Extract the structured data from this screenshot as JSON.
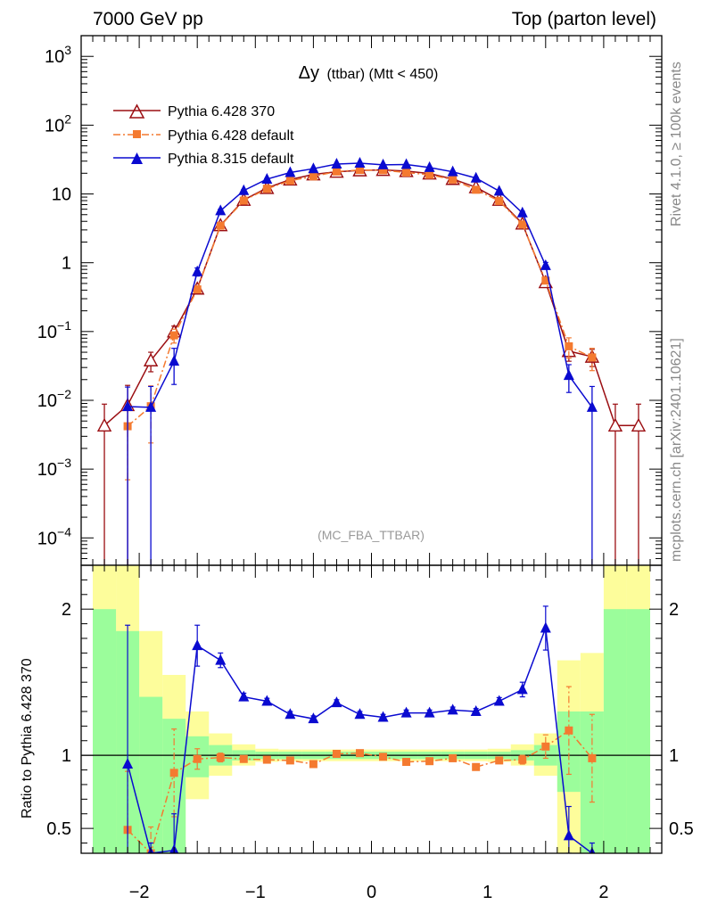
{
  "header": {
    "left": "7000 GeV pp",
    "right": "Top (parton level)"
  },
  "side_labels": {
    "rivet": "Rivet 4.1.0, ≥ 100k events",
    "mcplots": "mcplots.cern.ch [arXiv:2401.10621]"
  },
  "colors": {
    "p6_370": "#9b0e12",
    "p6_def": "#f47a30",
    "p8": "#0a0ad0",
    "band_green": "#9bfd9b",
    "band_yellow": "#fdfd9b"
  },
  "chart_data": [
    {
      "type": "line",
      "panel": "main",
      "title": "Δy (ttbar) (Mtt < 450)",
      "title_main": "Δy",
      "title_sub": "(ttbar) (Mtt < 450)",
      "watermark": "(MC_FBA_TTBAR)",
      "yscale": "log",
      "ylim": [
        4e-05,
        2000
      ],
      "xlim": [
        -2.5,
        2.5
      ],
      "x_ticks": [
        -2,
        -1,
        0,
        1,
        2
      ],
      "x_tick_labels": [
        "−2",
        "−1",
        "0",
        "1",
        "2"
      ],
      "y_ticks": [
        {
          "v": 0.0001,
          "base": "10",
          "exp": "−4"
        },
        {
          "v": 0.001,
          "base": "10",
          "exp": "−3"
        },
        {
          "v": 0.01,
          "base": "10",
          "exp": "−2"
        },
        {
          "v": 0.1,
          "base": "10",
          "exp": "−1"
        },
        {
          "v": 1,
          "base": "1",
          "exp": ""
        },
        {
          "v": 10,
          "base": "10",
          "exp": ""
        },
        {
          "v": 100,
          "base": "10",
          "exp": "2"
        },
        {
          "v": 1000,
          "base": "10",
          "exp": "3"
        }
      ],
      "legend_position": "top-left",
      "series": [
        {
          "name": "Pythia 6.428 370",
          "marker": "open-triangle",
          "line": "solid",
          "x": [
            -2.3,
            -2.1,
            -1.9,
            -1.7,
            -1.5,
            -1.3,
            -1.1,
            -0.9,
            -0.7,
            -0.5,
            -0.3,
            -0.1,
            0.1,
            0.3,
            0.5,
            0.7,
            0.9,
            1.1,
            1.3,
            1.5,
            1.7,
            1.9,
            2.1,
            2.3
          ],
          "y": [
            0.0043,
            0.0085,
            0.038,
            0.1,
            0.42,
            3.5,
            8.2,
            12.2,
            16.2,
            19.2,
            21.0,
            22.0,
            22.3,
            21.5,
            19.8,
            16.5,
            12.5,
            8.2,
            3.7,
            0.52,
            0.052,
            0.043,
            0.0043,
            0.0043
          ],
          "err_lo": [
            0.0043,
            0.0085,
            0.012,
            0.02,
            0.04,
            0.1,
            0.2,
            0.2,
            0.2,
            0.2,
            0.2,
            0.2,
            0.2,
            0.2,
            0.2,
            0.2,
            0.2,
            0.2,
            0.1,
            0.05,
            0.015,
            0.012,
            0.0043,
            0.0043
          ],
          "err_hi": [
            0.0045,
            0.008,
            0.012,
            0.02,
            0.04,
            0.1,
            0.2,
            0.2,
            0.2,
            0.2,
            0.2,
            0.2,
            0.2,
            0.2,
            0.2,
            0.2,
            0.2,
            0.2,
            0.1,
            0.05,
            0.015,
            0.012,
            0.0045,
            0.0045
          ]
        },
        {
          "name": "Pythia 6.428 default",
          "marker": "square",
          "line": "dash-dot",
          "x": [
            -2.1,
            -1.9,
            -1.7,
            -1.5,
            -1.3,
            -1.1,
            -0.9,
            -0.7,
            -0.5,
            -0.3,
            -0.1,
            0.1,
            0.3,
            0.5,
            0.7,
            0.9,
            1.1,
            1.3,
            1.5,
            1.7,
            1.9
          ],
          "y": [
            0.0042,
            0.0082,
            0.088,
            0.41,
            3.45,
            8.0,
            11.9,
            15.6,
            18.0,
            21.2,
            22.3,
            22.1,
            20.5,
            19.0,
            16.2,
            11.5,
            7.9,
            3.6,
            0.55,
            0.061,
            0.042
          ],
          "err_lo": [
            0.0035,
            0.0058,
            0.02,
            0.04,
            0.1,
            0.2,
            0.2,
            0.2,
            0.2,
            0.2,
            0.2,
            0.2,
            0.2,
            0.2,
            0.2,
            0.2,
            0.2,
            0.1,
            0.05,
            0.02,
            0.015
          ],
          "err_hi": [
            0.004,
            0.008,
            0.02,
            0.04,
            0.1,
            0.2,
            0.2,
            0.2,
            0.2,
            0.2,
            0.2,
            0.2,
            0.2,
            0.2,
            0.2,
            0.2,
            0.2,
            0.1,
            0.05,
            0.02,
            0.015
          ]
        },
        {
          "name": "Pythia 8.315 default",
          "marker": "filled-triangle",
          "line": "solid",
          "x": [
            -2.1,
            -1.9,
            -1.7,
            -1.5,
            -1.3,
            -1.1,
            -0.9,
            -0.7,
            -0.5,
            -0.3,
            -0.1,
            0.1,
            0.3,
            0.5,
            0.7,
            0.9,
            1.1,
            1.3,
            1.5,
            1.7,
            1.9
          ],
          "y": [
            0.0081,
            0.0079,
            0.037,
            0.74,
            5.7,
            11.2,
            16.4,
            20.5,
            23.3,
            27.2,
            28.0,
            26.5,
            26.8,
            24.2,
            21.0,
            17.0,
            11.0,
            5.3,
            0.91,
            0.023,
            0.0079
          ],
          "err_lo": [
            0.0081,
            0.0079,
            0.02,
            0.1,
            0.3,
            0.4,
            0.4,
            0.4,
            0.4,
            0.4,
            0.4,
            0.4,
            0.4,
            0.4,
            0.4,
            0.4,
            0.4,
            0.3,
            0.1,
            0.01,
            0.0079
          ],
          "err_hi": [
            0.0075,
            0.008,
            0.02,
            0.1,
            0.3,
            0.4,
            0.4,
            0.4,
            0.4,
            0.4,
            0.4,
            0.4,
            0.4,
            0.4,
            0.4,
            0.4,
            0.4,
            0.3,
            0.1,
            0.01,
            0.008
          ]
        }
      ]
    },
    {
      "type": "line",
      "panel": "ratio",
      "ylabel": "Ratio to Pythia 6.428 370",
      "ylim": [
        0.33,
        2.3
      ],
      "xlim": [
        -2.5,
        2.5
      ],
      "y_ticks": [
        0.5,
        1,
        2
      ],
      "y_tick_labels": [
        "0.5",
        "1",
        "2"
      ],
      "reference_line": 1,
      "band_edges": [
        -2.4,
        -2.2,
        -2.0,
        -1.8,
        -1.6,
        -1.4,
        -1.2,
        -1.0,
        -0.8,
        -0.6,
        -0.4,
        -0.2,
        0.0,
        0.2,
        0.4,
        0.6,
        0.8,
        1.0,
        1.2,
        1.4,
        1.6,
        1.8,
        2.0,
        2.2,
        2.4
      ],
      "band_green": [
        [
          0.2,
          2.0
        ],
        [
          0.2,
          1.85
        ],
        [
          0.2,
          1.4
        ],
        [
          0.2,
          1.25
        ],
        [
          0.85,
          1.13
        ],
        [
          0.93,
          1.07
        ],
        [
          0.965,
          1.035
        ],
        [
          0.975,
          1.025
        ],
        [
          0.975,
          1.025
        ],
        [
          0.975,
          1.025
        ],
        [
          0.975,
          1.025
        ],
        [
          0.975,
          1.025
        ],
        [
          0.975,
          1.025
        ],
        [
          0.975,
          1.025
        ],
        [
          0.975,
          1.025
        ],
        [
          0.975,
          1.025
        ],
        [
          0.975,
          1.025
        ],
        [
          0.975,
          1.025
        ],
        [
          0.965,
          1.035
        ],
        [
          0.93,
          1.07
        ],
        [
          0.75,
          1.3
        ],
        [
          0.2,
          1.3
        ],
        [
          0.2,
          2.0
        ],
        [
          0.2,
          2.0
        ]
      ],
      "band_yellow": [
        [
          0.2,
          2.3
        ],
        [
          0.2,
          2.3
        ],
        [
          0.2,
          1.85
        ],
        [
          0.2,
          1.55
        ],
        [
          0.7,
          1.3
        ],
        [
          0.86,
          1.15
        ],
        [
          0.93,
          1.075
        ],
        [
          0.955,
          1.045
        ],
        [
          0.96,
          1.04
        ],
        [
          0.96,
          1.04
        ],
        [
          0.96,
          1.04
        ],
        [
          0.96,
          1.04
        ],
        [
          0.96,
          1.04
        ],
        [
          0.96,
          1.04
        ],
        [
          0.96,
          1.04
        ],
        [
          0.96,
          1.04
        ],
        [
          0.96,
          1.04
        ],
        [
          0.955,
          1.045
        ],
        [
          0.93,
          1.075
        ],
        [
          0.86,
          1.15
        ],
        [
          0.3,
          1.65
        ],
        [
          0.2,
          1.7
        ],
        [
          0.2,
          2.3
        ],
        [
          0.2,
          2.3
        ]
      ],
      "series": [
        {
          "name": "Pythia 6.428 default",
          "x": [
            -2.1,
            -1.9,
            -1.7,
            -1.5,
            -1.3,
            -1.1,
            -0.9,
            -0.7,
            -0.5,
            -0.3,
            -0.1,
            0.1,
            0.3,
            0.5,
            0.7,
            0.9,
            1.1,
            1.3,
            1.5,
            1.7,
            1.9
          ],
          "y": [
            0.49,
            0.21,
            0.88,
            0.975,
            0.985,
            0.975,
            0.97,
            0.965,
            0.94,
            1.01,
            1.015,
            0.99,
            0.955,
            0.96,
            0.98,
            0.92,
            0.965,
            0.97,
            1.06,
            1.17,
            0.98
          ],
          "err": [
            0.4,
            0.3,
            0.3,
            0.07,
            0.03,
            0.02,
            0.015,
            0.015,
            0.015,
            0.015,
            0.015,
            0.015,
            0.015,
            0.015,
            0.015,
            0.015,
            0.02,
            0.03,
            0.08,
            0.3,
            0.3
          ]
        },
        {
          "name": "Pythia 8.315 default",
          "x": [
            -2.1,
            -1.9,
            -1.7,
            -1.5,
            -1.3,
            -1.1,
            -0.9,
            -0.7,
            -0.5,
            -0.3,
            -0.1,
            0.1,
            0.3,
            0.5,
            0.7,
            0.9,
            1.1,
            1.3,
            1.5,
            1.7,
            1.9
          ],
          "y": [
            0.94,
            0.2,
            0.35,
            1.75,
            1.65,
            1.4,
            1.37,
            1.28,
            1.25,
            1.36,
            1.28,
            1.26,
            1.29,
            1.29,
            1.31,
            1.3,
            1.37,
            1.45,
            1.87,
            0.45,
            0.2
          ],
          "err": [
            0.95,
            0.2,
            0.25,
            0.14,
            0.05,
            0.025,
            0.02,
            0.02,
            0.02,
            0.02,
            0.02,
            0.02,
            0.02,
            0.02,
            0.02,
            0.02,
            0.025,
            0.05,
            0.15,
            0.2,
            0.2
          ]
        }
      ]
    }
  ]
}
